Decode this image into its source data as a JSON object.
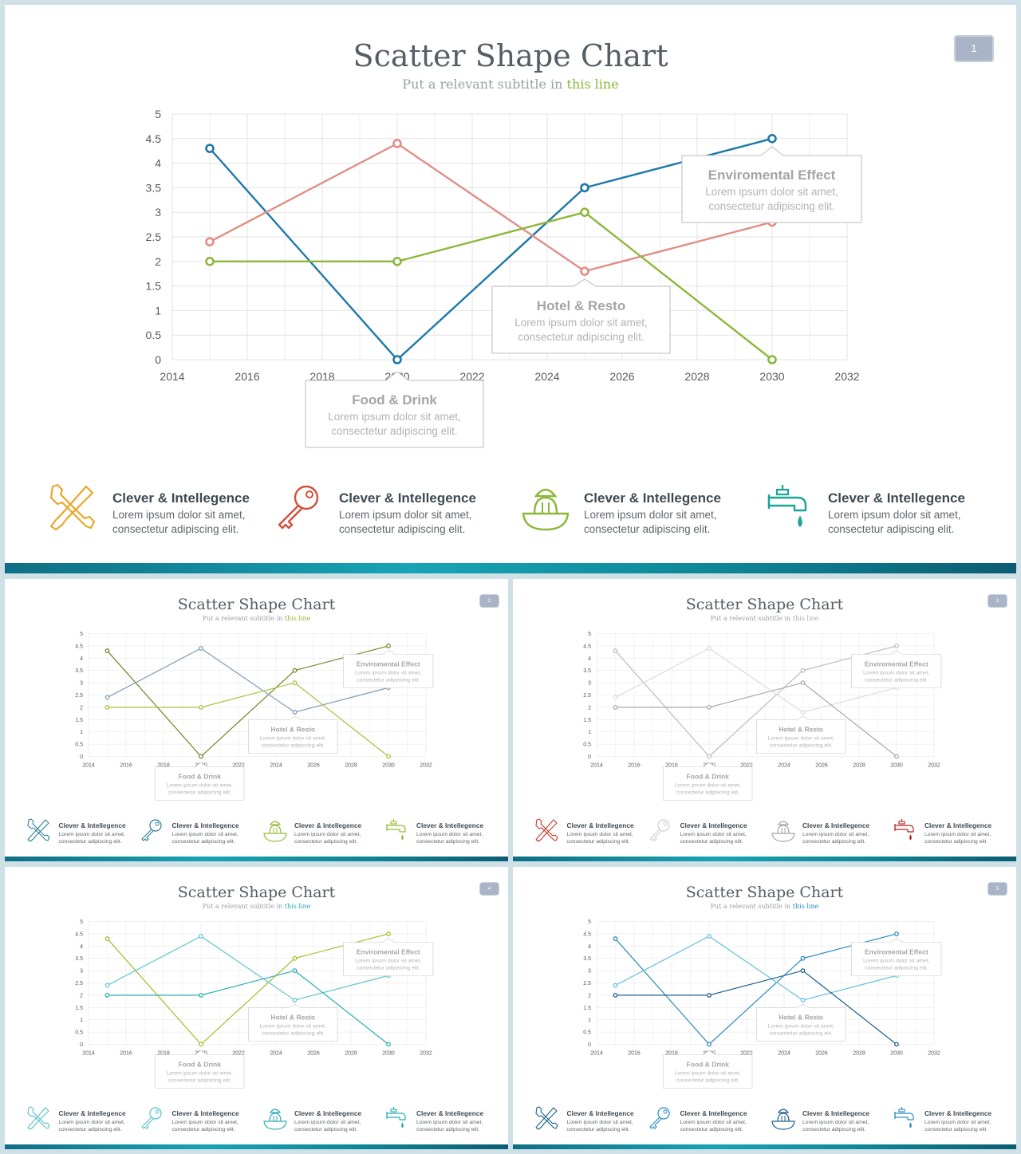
{
  "slides": [
    {
      "title": "Scatter Shape Chart",
      "subtitle_prefix": "Put a relevant subtitle in ",
      "subtitle_highlight": "this line",
      "page": "1",
      "palette": {
        "series": [
          "#1e78a8",
          "#e08e86",
          "#8cb83a"
        ],
        "icons": [
          "#e8a82b",
          "#d2503a",
          "#8cb83a",
          "#1aa59b"
        ],
        "highlight": "#8cb83a"
      }
    },
    {
      "title": "Scatter Shape Chart",
      "subtitle_prefix": "Put a relevant subtitle in ",
      "subtitle_highlight": "this line",
      "page": "2",
      "palette": {
        "series": [
          "#6b8a24",
          "#7f9fb8",
          "#a6c23c"
        ],
        "icons": [
          "#2f7f99",
          "#2f7f99",
          "#98b83a",
          "#98b83a"
        ],
        "highlight": "#98b83a"
      }
    },
    {
      "title": "Scatter Shape Chart",
      "subtitle_prefix": "Put a relevant subtitle in ",
      "subtitle_highlight": "this line",
      "page": "3",
      "palette": {
        "series": [
          "#bdbdbd",
          "#dddddd",
          "#a9a9a9"
        ],
        "icons": [
          "#c0392b",
          "#cfcfcf",
          "#a5a5a5",
          "#b22222"
        ],
        "highlight": "#b0b0b0"
      }
    },
    {
      "title": "Scatter Shape Chart",
      "subtitle_prefix": "Put a relevant subtitle in ",
      "subtitle_highlight": "this line",
      "page": "4",
      "palette": {
        "series": [
          "#a6bc2c",
          "#62c7cf",
          "#27aeb1"
        ],
        "icons": [
          "#5ac1c9",
          "#5ac1c9",
          "#27aeb1",
          "#27aeb1"
        ],
        "highlight": "#27aeb1"
      }
    },
    {
      "title": "Scatter Shape Chart",
      "subtitle_prefix": "Put a relevant subtitle in ",
      "subtitle_highlight": "this line",
      "page": "5",
      "palette": {
        "series": [
          "#2a8cc0",
          "#66c3dd",
          "#1e5f8a"
        ],
        "icons": [
          "#1e5f8a",
          "#2a8cc0",
          "#1e5f8a",
          "#2a8cc0"
        ],
        "highlight": "#2a8cc0"
      }
    }
  ],
  "chart_data": {
    "type": "line",
    "x": [
      2015,
      2020,
      2025,
      2030
    ],
    "series": [
      {
        "values": [
          4.3,
          0,
          3.5,
          4.5
        ]
      },
      {
        "values": [
          2.4,
          4.4,
          1.8,
          2.8
        ]
      },
      {
        "values": [
          2,
          2,
          3,
          0
        ]
      }
    ],
    "xlim": [
      2014,
      2032
    ],
    "ylim": [
      0,
      5
    ],
    "x_ticks": [
      "2014",
      "2016",
      "2018",
      "2020",
      "2022",
      "2024",
      "2026",
      "2028",
      "2030",
      "2032"
    ],
    "y_ticks": [
      "0",
      "0.5",
      "1",
      "1.5",
      "2",
      "2.5",
      "3",
      "3.5",
      "4",
      "4.5",
      "5"
    ],
    "grid": true,
    "annotations": [
      {
        "title": "Enviromental Effect",
        "text1": "Lorem ipsum dolor sit amet,",
        "text2": "consectetur adipiscing elit."
      },
      {
        "title": "Hotel & Resto",
        "text1": "Lorem ipsum dolor sit amet,",
        "text2": "consectetur adipiscing elit."
      },
      {
        "title": "Food & Drink",
        "text1": "Lorem ipsum dolor sit amet,",
        "text2": "consectetur adipiscing elit."
      }
    ]
  },
  "features": [
    {
      "title": "Clever & Intellegence",
      "line1": "Lorem ipsum dolor sit amet,",
      "line2": "consectetur adipiscing elit.",
      "icon": "tools-icon"
    },
    {
      "title": "Clever & Intellegence",
      "line1": "Lorem ipsum dolor sit amet,",
      "line2": "consectetur adipiscing elit.",
      "icon": "key-icon"
    },
    {
      "title": "Clever & Intellegence",
      "line1": "Lorem ipsum dolor sit amet,",
      "line2": "consectetur adipiscing elit.",
      "icon": "juicer-icon"
    },
    {
      "title": "Clever & Intellegence",
      "line1": "Lorem ipsum dolor sit amet,",
      "line2": "consectetur adipiscing elit.",
      "icon": "faucet-icon"
    }
  ]
}
